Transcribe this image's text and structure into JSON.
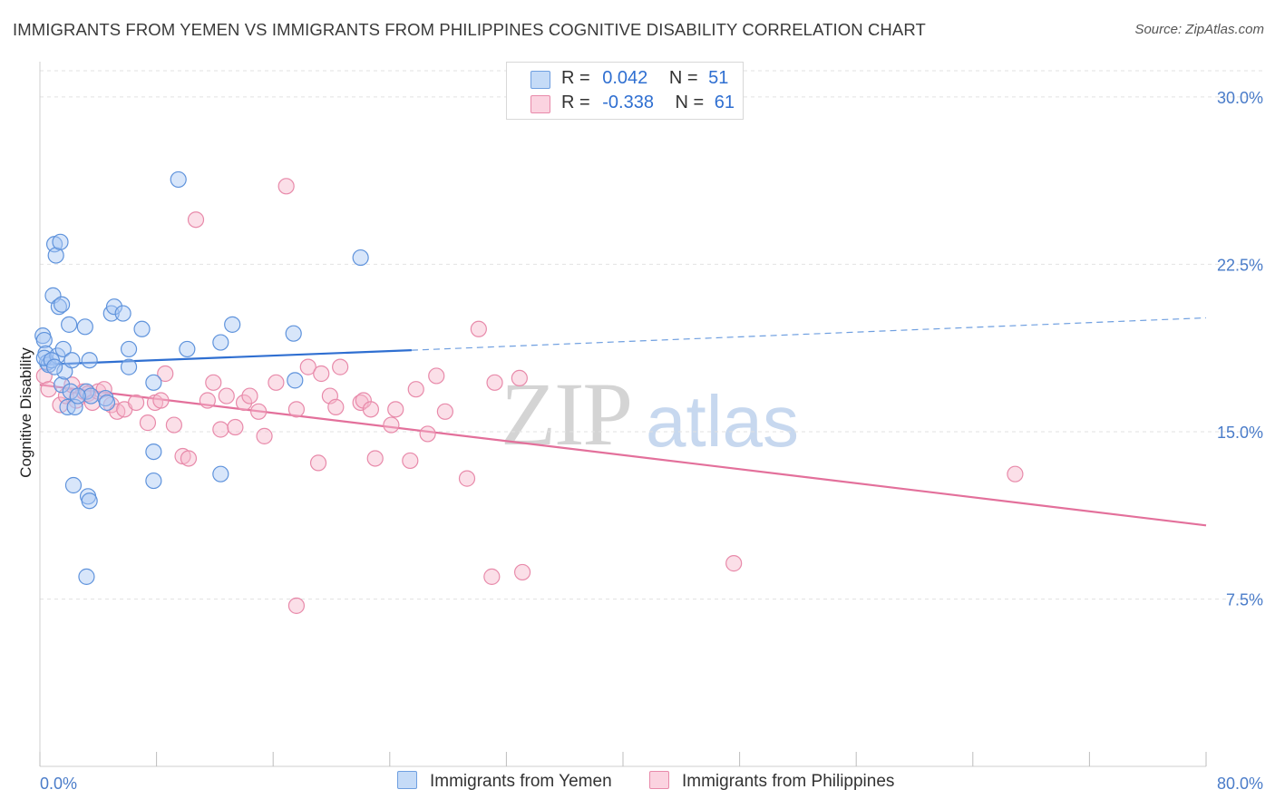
{
  "title": "IMMIGRANTS FROM YEMEN VS IMMIGRANTS FROM PHILIPPINES COGNITIVE DISABILITY CORRELATION CHART",
  "source": "Source: ZipAtlas.com",
  "watermark": {
    "zip": "ZIP",
    "atlas": "atlas"
  },
  "legend": {
    "rows": [
      {
        "r_label": "R =",
        "r_value": "0.042",
        "n_label": "N =",
        "n_value": "51",
        "color": "#a9c8f3"
      },
      {
        "r_label": "R =",
        "r_value": "-0.338",
        "n_label": "N =",
        "n_value": "61",
        "color": "#f7b8cc"
      }
    ]
  },
  "chart_data": {
    "type": "scatter",
    "title": "IMMIGRANTS FROM YEMEN VS IMMIGRANTS FROM PHILIPPINES COGNITIVE DISABILITY CORRELATION CHART",
    "xlabel": "",
    "ylabel": "Cognitive Disability",
    "xlim": [
      0,
      80
    ],
    "ylim": [
      0,
      31.5
    ],
    "x_tick_labels": [
      "0.0%",
      "80.0%"
    ],
    "y_tick_labels": [
      "7.5%",
      "15.0%",
      "22.5%",
      "30.0%"
    ],
    "y_ticks": [
      7.5,
      15.0,
      22.5,
      30.0
    ],
    "grid": true,
    "legend_position": "top-center",
    "series": [
      {
        "name": "Immigrants from Yemen",
        "color": "#6f9fe0",
        "fill": "#a9c8f3",
        "trend": {
          "x0": 0,
          "y0": 18.0,
          "x1": 25.5,
          "y1": 18.65,
          "x_ext": 80,
          "y_ext": 20.1
        },
        "points": [
          [
            0.2,
            19.3
          ],
          [
            0.3,
            19.1
          ],
          [
            0.4,
            18.5
          ],
          [
            0.5,
            18.1
          ],
          [
            0.6,
            18.0
          ],
          [
            0.3,
            18.3
          ],
          [
            0.9,
            21.1
          ],
          [
            1.0,
            23.4
          ],
          [
            1.1,
            22.9
          ],
          [
            1.4,
            23.5
          ],
          [
            1.3,
            20.6
          ],
          [
            1.5,
            20.7
          ],
          [
            1.2,
            18.4
          ],
          [
            1.6,
            18.7
          ],
          [
            1.5,
            17.1
          ],
          [
            1.7,
            17.7
          ],
          [
            1.9,
            16.1
          ],
          [
            2.1,
            16.8
          ],
          [
            2.0,
            19.8
          ],
          [
            2.2,
            18.2
          ],
          [
            2.4,
            16.1
          ],
          [
            2.3,
            12.6
          ],
          [
            3.1,
            19.7
          ],
          [
            3.4,
            18.2
          ],
          [
            3.2,
            16.8
          ],
          [
            3.5,
            16.6
          ],
          [
            3.3,
            12.1
          ],
          [
            3.4,
            11.9
          ],
          [
            3.2,
            8.5
          ],
          [
            4.5,
            16.5
          ],
          [
            4.6,
            16.3
          ],
          [
            4.9,
            20.3
          ],
          [
            5.1,
            20.6
          ],
          [
            5.7,
            20.3
          ],
          [
            6.1,
            18.7
          ],
          [
            6.1,
            17.9
          ],
          [
            7.0,
            19.6
          ],
          [
            7.8,
            17.2
          ],
          [
            7.8,
            14.1
          ],
          [
            7.8,
            12.8
          ],
          [
            9.5,
            26.3
          ],
          [
            10.1,
            18.7
          ],
          [
            12.4,
            19.0
          ],
          [
            13.2,
            19.8
          ],
          [
            12.4,
            13.1
          ],
          [
            17.4,
            19.4
          ],
          [
            17.5,
            17.3
          ],
          [
            22.0,
            22.8
          ],
          [
            0.8,
            18.2
          ],
          [
            1.0,
            17.9
          ],
          [
            2.6,
            16.6
          ]
        ]
      },
      {
        "name": "Immigrants from Philippines",
        "color": "#e88aaa",
        "fill": "#f7b8cc",
        "trend": {
          "x0": 0,
          "y0": 17.1,
          "x1": 80,
          "y1": 10.8
        },
        "points": [
          [
            0.3,
            17.5
          ],
          [
            0.6,
            16.9
          ],
          [
            1.4,
            16.2
          ],
          [
            1.8,
            16.6
          ],
          [
            2.2,
            17.1
          ],
          [
            2.5,
            16.4
          ],
          [
            3.0,
            16.8
          ],
          [
            3.3,
            16.7
          ],
          [
            3.6,
            16.3
          ],
          [
            4.0,
            16.8
          ],
          [
            4.4,
            16.9
          ],
          [
            4.9,
            16.2
          ],
          [
            5.3,
            15.9
          ],
          [
            5.8,
            16.0
          ],
          [
            6.6,
            16.3
          ],
          [
            7.4,
            15.4
          ],
          [
            7.9,
            16.3
          ],
          [
            8.3,
            16.4
          ],
          [
            8.6,
            17.6
          ],
          [
            9.2,
            15.3
          ],
          [
            9.8,
            13.9
          ],
          [
            10.2,
            13.8
          ],
          [
            10.7,
            24.5
          ],
          [
            11.5,
            16.4
          ],
          [
            11.9,
            17.2
          ],
          [
            12.4,
            15.1
          ],
          [
            12.8,
            16.6
          ],
          [
            13.4,
            15.2
          ],
          [
            14.0,
            16.3
          ],
          [
            14.4,
            16.6
          ],
          [
            15.0,
            15.9
          ],
          [
            15.4,
            14.8
          ],
          [
            16.2,
            17.2
          ],
          [
            16.9,
            26.0
          ],
          [
            17.6,
            16.0
          ],
          [
            17.6,
            7.2
          ],
          [
            18.4,
            17.9
          ],
          [
            19.1,
            13.6
          ],
          [
            19.3,
            17.6
          ],
          [
            19.9,
            16.6
          ],
          [
            20.3,
            16.1
          ],
          [
            20.6,
            17.9
          ],
          [
            22.0,
            16.3
          ],
          [
            22.2,
            16.4
          ],
          [
            22.7,
            16.0
          ],
          [
            23.0,
            13.8
          ],
          [
            24.1,
            15.3
          ],
          [
            24.4,
            16.0
          ],
          [
            25.4,
            13.7
          ],
          [
            25.8,
            16.9
          ],
          [
            26.6,
            14.9
          ],
          [
            27.2,
            17.5
          ],
          [
            27.8,
            15.9
          ],
          [
            29.3,
            12.9
          ],
          [
            30.1,
            19.6
          ],
          [
            31.0,
            8.5
          ],
          [
            31.2,
            17.2
          ],
          [
            32.9,
            17.4
          ],
          [
            33.1,
            8.7
          ],
          [
            47.6,
            9.1
          ],
          [
            66.9,
            13.1
          ]
        ]
      }
    ]
  }
}
